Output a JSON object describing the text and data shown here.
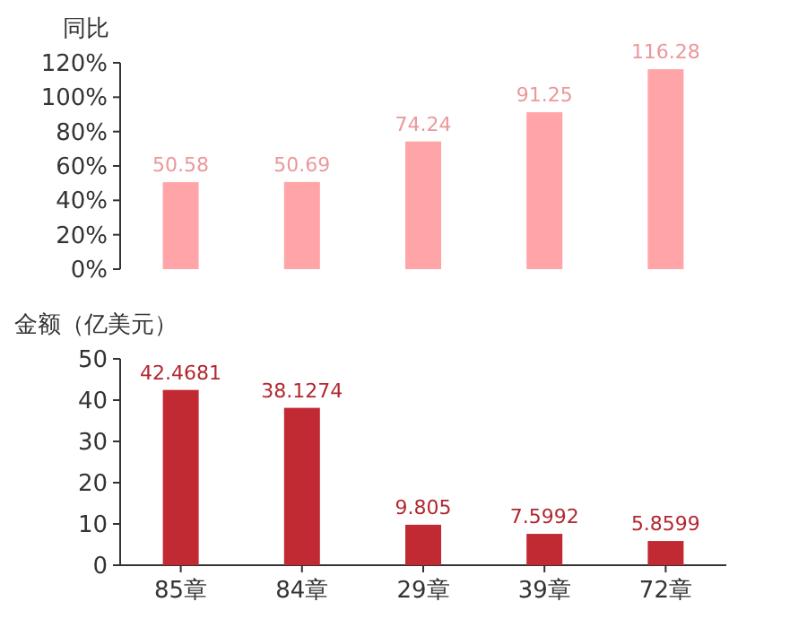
{
  "chart_data": [
    {
      "type": "bar",
      "ylabel": "同比",
      "categories": [
        null,
        null,
        null,
        null,
        null
      ],
      "tick_labels": "y",
      "data_labels": true,
      "series": [
        {
          "color": "#ffa5a8",
          "values": [
            50.58,
            50.69,
            74.24,
            91.25,
            116.28
          ]
        }
      ],
      "ylim": [
        0,
        120
      ],
      "yticks": [
        {
          "value": 0,
          "label": "0%"
        },
        {
          "value": 20,
          "label": "20%"
        },
        {
          "value": 40,
          "label": "40%"
        },
        {
          "value": 60,
          "label": "60%"
        },
        {
          "value": 80,
          "label": "80%"
        },
        {
          "value": 100,
          "label": "100%"
        },
        {
          "value": 120,
          "label": "120%"
        }
      ]
    },
    {
      "type": "bar",
      "ylabel": "金额（亿美元）",
      "categories": [
        "85章",
        "84章",
        "29章",
        "39章",
        "72章"
      ],
      "data_labels": true,
      "series": [
        {
          "color": "#c12a33",
          "values": [
            42.4681,
            38.1274,
            9.805,
            7.5992,
            5.8599
          ]
        }
      ],
      "ylim": [
        0,
        50
      ],
      "yticks": [
        0,
        10,
        20,
        30,
        40,
        50
      ]
    }
  ]
}
